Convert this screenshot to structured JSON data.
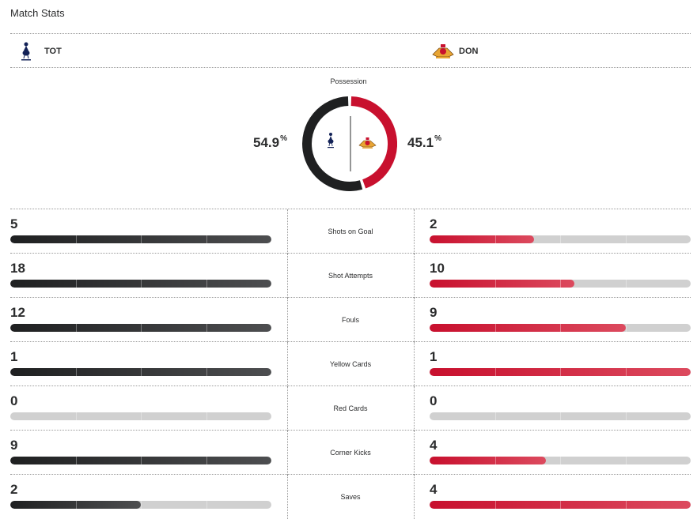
{
  "header": {
    "title": "Match Stats"
  },
  "teams": {
    "home": {
      "abbr": "TOT",
      "color": "#1f2021"
    },
    "away": {
      "abbr": "DON",
      "color": "#c8102e"
    }
  },
  "possession": {
    "label": "Possession",
    "home_value": "54.9",
    "away_value": "45.1",
    "unit": "%"
  },
  "stats": [
    {
      "label": "Shots on Goal",
      "home": "5",
      "away": "2",
      "home_fraction": 1.0,
      "away_fraction": 0.4
    },
    {
      "label": "Shot Attempts",
      "home": "18",
      "away": "10",
      "home_fraction": 1.0,
      "away_fraction": 0.556
    },
    {
      "label": "Fouls",
      "home": "12",
      "away": "9",
      "home_fraction": 1.0,
      "away_fraction": 0.75
    },
    {
      "label": "Yellow Cards",
      "home": "1",
      "away": "1",
      "home_fraction": 1.0,
      "away_fraction": 1.0
    },
    {
      "label": "Red Cards",
      "home": "0",
      "away": "0",
      "home_fraction": 0,
      "away_fraction": 0
    },
    {
      "label": "Corner Kicks",
      "home": "9",
      "away": "4",
      "home_fraction": 1.0,
      "away_fraction": 0.444
    },
    {
      "label": "Saves",
      "home": "2",
      "away": "4",
      "home_fraction": 0.5,
      "away_fraction": 1.0
    }
  ]
}
